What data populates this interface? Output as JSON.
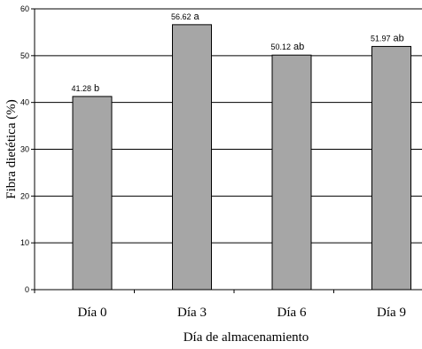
{
  "chart_data": {
    "type": "bar",
    "categories": [
      "Día 0",
      "Día 3",
      "Día 6",
      "Día 9"
    ],
    "values": [
      41.28,
      56.62,
      50.12,
      51.97
    ],
    "value_labels": [
      "41.28",
      "56.62",
      "50.12",
      "51.97"
    ],
    "significance_letters": [
      "b",
      "a",
      "ab",
      "ab"
    ],
    "xlabel": "Día de almacenamiento",
    "ylabel": "Fibra dietética (%)",
    "ylim": [
      0,
      60
    ],
    "yticks": [
      0,
      10,
      20,
      30,
      40,
      50,
      60
    ],
    "grid": true,
    "colors": {
      "bar_fill": "#a6a6a6",
      "bar_stroke": "#000000",
      "grid": "#000000"
    }
  }
}
